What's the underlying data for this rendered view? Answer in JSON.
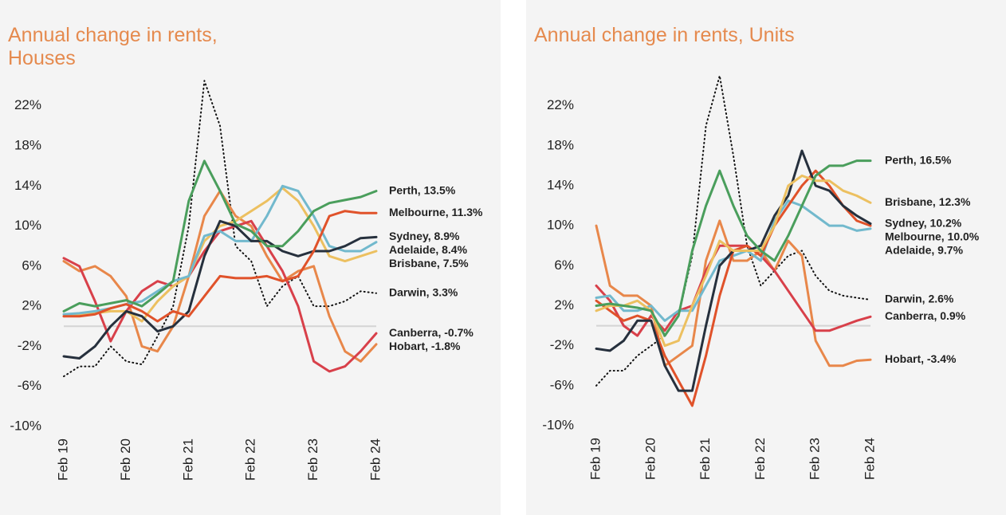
{
  "chart_data": [
    {
      "type": "line",
      "title": "Annual change in rents, Houses",
      "categories": [
        "Feb 19",
        null,
        null,
        null,
        "Feb 20",
        null,
        null,
        null,
        "Feb 21",
        null,
        null,
        null,
        "Feb 22",
        null,
        null,
        null,
        "Feb 23",
        null,
        null,
        null,
        "Feb 24"
      ],
      "ylim": [
        -10,
        25
      ],
      "yticks": [
        {
          "value": -10,
          "label": "-10%"
        },
        {
          "value": -6,
          "label": "-6%"
        },
        {
          "value": -2,
          "label": "-2%"
        },
        {
          "value": 2,
          "label": "2%"
        },
        {
          "value": 6,
          "label": "6%"
        },
        {
          "value": 10,
          "label": "10%"
        },
        {
          "value": 14,
          "label": "14%"
        },
        {
          "value": 18,
          "label": "18%"
        },
        {
          "value": 22,
          "label": "22%"
        }
      ],
      "series": [
        {
          "name": "Darwin",
          "end_label": "Darwin, 3.3%",
          "color": "#111111",
          "dash": "dotted",
          "values": [
            -5,
            -4,
            -4,
            -2,
            -3.5,
            -3.8,
            -1,
            2,
            10,
            24.5,
            20,
            8,
            6.5,
            2,
            4,
            5,
            2,
            2,
            2.5,
            3.5,
            3.3
          ]
        },
        {
          "name": "Hobart",
          "end_label": "Hobart, -1.8%",
          "color": "#e8874a",
          "values": [
            6.5,
            5.5,
            6,
            5,
            3,
            -2,
            -2.5,
            0,
            5,
            11,
            13.5,
            11,
            10,
            7,
            4.5,
            5.5,
            6,
            1,
            -2.5,
            -3.5,
            -1.8
          ]
        },
        {
          "name": "Canberra",
          "end_label": "Canberra, -0.7%",
          "color": "#d8404a",
          "values": [
            6.8,
            6,
            2.5,
            -1.5,
            1.5,
            3.5,
            4.5,
            4,
            5,
            7.5,
            9.5,
            10,
            10.5,
            8,
            5.5,
            2,
            -3.5,
            -4.5,
            -4,
            -2.5,
            -0.7
          ]
        },
        {
          "name": "Brisbane",
          "end_label": "Brisbane, 7.5%",
          "color": "#ecc060",
          "values": [
            1,
            1.2,
            1.3,
            1.5,
            1.5,
            0.5,
            2.5,
            4,
            5,
            8.5,
            10,
            10.5,
            11.5,
            12.5,
            13.8,
            12.5,
            10,
            7,
            6.5,
            7,
            7.5
          ]
        },
        {
          "name": "Adelaide",
          "end_label": "Adelaide, 8.4%",
          "color": "#72b9cd",
          "values": [
            1.2,
            1.3,
            1.5,
            1.8,
            2.2,
            2.5,
            3.5,
            4.5,
            5,
            9,
            9.5,
            8.5,
            8.5,
            11,
            14,
            13.5,
            11,
            8,
            7.5,
            7.5,
            8.4
          ]
        },
        {
          "name": "Sydney",
          "end_label": "Sydney, 8.9%",
          "color": "#26303d",
          "values": [
            -3,
            -3.2,
            -2,
            0,
            1.5,
            1,
            -0.5,
            0,
            1.5,
            7,
            10.5,
            10,
            8.5,
            8.5,
            7.5,
            7,
            7.5,
            7.5,
            8,
            8.8,
            8.9
          ]
        },
        {
          "name": "Melbourne",
          "end_label": "Melbourne, 11.3%",
          "color": "#e0522a",
          "values": [
            1,
            1,
            1.2,
            1.8,
            2.2,
            1.5,
            0.5,
            1.5,
            1,
            3,
            5,
            4.8,
            4.8,
            5,
            4.5,
            5,
            7.5,
            11,
            11.5,
            11.3,
            11.3
          ]
        },
        {
          "name": "Perth",
          "end_label": "Perth, 13.5%",
          "color": "#4a9e5c",
          "values": [
            1.5,
            2.3,
            2,
            2.3,
            2.6,
            2,
            3.2,
            4.5,
            12.5,
            16.5,
            13.5,
            10.2,
            9.5,
            8,
            8,
            9.5,
            11.5,
            12.3,
            12.6,
            12.9,
            13.5
          ]
        }
      ]
    },
    {
      "type": "line",
      "title": "Annual change in rents, Units",
      "categories": [
        "Feb 19",
        null,
        null,
        null,
        "Feb 20",
        null,
        null,
        null,
        "Feb 21",
        null,
        null,
        null,
        "Feb 22",
        null,
        null,
        null,
        "Feb 23",
        null,
        null,
        null,
        "Feb 24"
      ],
      "ylim": [
        -10,
        25
      ],
      "yticks": [
        {
          "value": -10,
          "label": "-10%"
        },
        {
          "value": -6,
          "label": "-6%"
        },
        {
          "value": -2,
          "label": "-2%"
        },
        {
          "value": 2,
          "label": "2%"
        },
        {
          "value": 6,
          "label": "6%"
        },
        {
          "value": 10,
          "label": "10%"
        },
        {
          "value": 14,
          "label": "14%"
        },
        {
          "value": 18,
          "label": "18%"
        },
        {
          "value": 22,
          "label": "22%"
        }
      ],
      "series": [
        {
          "name": "Darwin",
          "end_label": "Darwin, 2.6%",
          "color": "#111111",
          "dash": "dotted",
          "values": [
            -6,
            -4.5,
            -4.5,
            -3,
            -2,
            -1,
            1,
            7,
            20,
            25,
            17,
            8,
            4,
            5.5,
            7,
            7.5,
            5,
            3.5,
            3,
            2.8,
            2.6
          ]
        },
        {
          "name": "Hobart",
          "end_label": "Hobart, -3.4%",
          "color": "#e8874a",
          "values": [
            10,
            4,
            3,
            3,
            2,
            -4,
            -3,
            -2,
            6.5,
            10.5,
            6.5,
            6.5,
            7.5,
            5.5,
            8.5,
            7,
            -1.5,
            -4,
            -4,
            -3.5,
            -3.4
          ]
        },
        {
          "name": "Canberra",
          "end_label": "Canberra, 0.9%",
          "color": "#d8404a",
          "values": [
            4,
            2.5,
            0,
            -1,
            1,
            -0.5,
            1.5,
            2,
            5.5,
            8,
            8,
            8,
            7,
            5.5,
            3.5,
            1.5,
            -0.5,
            -0.5,
            0,
            0.5,
            0.9
          ]
        },
        {
          "name": "Adelaide",
          "end_label": "Adelaide, 9.7%",
          "color": "#72b9cd",
          "values": [
            2.8,
            3,
            1.5,
            1.5,
            2,
            0.5,
            1.5,
            1.5,
            4,
            6.5,
            7,
            7.5,
            6.5,
            10.5,
            12.5,
            12,
            11,
            10,
            10,
            9.5,
            9.7
          ]
        },
        {
          "name": "Melbourne",
          "end_label": "Melbourne, 10.0%",
          "color": "#e0522a",
          "values": [
            2.5,
            1.5,
            0.5,
            1,
            0.5,
            -3,
            -5.5,
            -8,
            -3,
            3,
            7.5,
            8,
            7,
            10,
            12,
            14,
            15.5,
            14,
            12,
            10.5,
            10.0
          ]
        },
        {
          "name": "Sydney",
          "end_label": "Sydney, 10.2%",
          "color": "#26303d",
          "values": [
            -2.3,
            -2.5,
            -1.5,
            0.5,
            0.5,
            -4,
            -6.5,
            -6.5,
            0,
            6,
            7.5,
            7.5,
            8,
            11,
            13,
            17.5,
            14,
            13.5,
            12,
            11,
            10.2
          ]
        },
        {
          "name": "Brisbane",
          "end_label": "Brisbane, 12.3%",
          "color": "#ecc060",
          "values": [
            1.5,
            2,
            2,
            2.5,
            1.5,
            -2,
            -1.5,
            2,
            5,
            8.5,
            7.5,
            7.5,
            7.5,
            10,
            14,
            15,
            14.5,
            14.5,
            13.5,
            13,
            12.3
          ]
        },
        {
          "name": "Perth",
          "end_label": "Perth, 16.5%",
          "color": "#4a9e5c",
          "values": [
            2,
            2.2,
            2,
            1.8,
            1.5,
            -1,
            1,
            7.5,
            12,
            15.5,
            12,
            9,
            7.5,
            6.5,
            9,
            12,
            15,
            16,
            16,
            16.5,
            16.5
          ]
        }
      ]
    }
  ]
}
